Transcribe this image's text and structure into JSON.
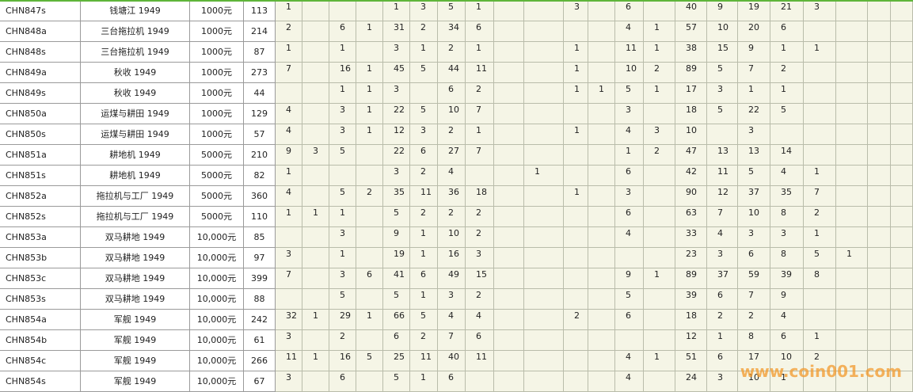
{
  "table": {
    "rows": [
      {
        "id": "CHN847s",
        "name": "钱塘江 1949",
        "denomination": "1000元",
        "total": 113,
        "cells": [
          1,
          null,
          null,
          null,
          1,
          3,
          5,
          1,
          null,
          null,
          3,
          null,
          6,
          null,
          40,
          9,
          19,
          21,
          3,
          null,
          null,
          null
        ]
      },
      {
        "id": "CHN848a",
        "name": "三台拖拉机 1949",
        "denomination": "1000元",
        "total": 214,
        "cells": [
          2,
          null,
          6,
          1,
          31,
          2,
          34,
          6,
          null,
          null,
          null,
          null,
          4,
          1,
          57,
          10,
          20,
          6,
          null,
          null,
          null,
          null
        ]
      },
      {
        "id": "CHN848s",
        "name": "三台拖拉机 1949",
        "denomination": "1000元",
        "total": 87,
        "cells": [
          1,
          null,
          1,
          null,
          3,
          1,
          2,
          1,
          null,
          null,
          1,
          null,
          11,
          1,
          38,
          15,
          9,
          1,
          1,
          null,
          null,
          null
        ]
      },
      {
        "id": "CHN849a",
        "name": "秋收 1949",
        "denomination": "1000元",
        "total": 273,
        "cells": [
          7,
          null,
          16,
          1,
          45,
          5,
          44,
          11,
          null,
          null,
          1,
          null,
          10,
          2,
          89,
          5,
          7,
          2,
          null,
          null,
          null,
          null
        ]
      },
      {
        "id": "CHN849s",
        "name": "秋收 1949",
        "denomination": "1000元",
        "total": 44,
        "cells": [
          null,
          null,
          1,
          1,
          3,
          null,
          6,
          2,
          null,
          null,
          1,
          1,
          5,
          1,
          17,
          3,
          1,
          1,
          null,
          null,
          null,
          null
        ]
      },
      {
        "id": "CHN850a",
        "name": "运煤与耕田 1949",
        "denomination": "1000元",
        "total": 129,
        "cells": [
          4,
          null,
          3,
          1,
          22,
          5,
          10,
          7,
          null,
          null,
          null,
          null,
          3,
          null,
          18,
          5,
          22,
          5,
          null,
          null,
          null,
          null
        ]
      },
      {
        "id": "CHN850s",
        "name": "运煤与耕田 1949",
        "denomination": "1000元",
        "total": 57,
        "cells": [
          4,
          null,
          3,
          1,
          12,
          3,
          2,
          1,
          null,
          null,
          1,
          null,
          4,
          3,
          10,
          null,
          3,
          null,
          null,
          null,
          null,
          null
        ]
      },
      {
        "id": "CHN851a",
        "name": "耕地机 1949",
        "denomination": "5000元",
        "total": 210,
        "cells": [
          9,
          3,
          5,
          null,
          22,
          6,
          27,
          7,
          null,
          null,
          null,
          null,
          1,
          2,
          47,
          13,
          13,
          14,
          null,
          null,
          null,
          null
        ]
      },
      {
        "id": "CHN851s",
        "name": "耕地机 1949",
        "denomination": "5000元",
        "total": 82,
        "cells": [
          1,
          null,
          null,
          null,
          3,
          2,
          4,
          null,
          null,
          1,
          null,
          null,
          6,
          null,
          42,
          11,
          5,
          4,
          1,
          null,
          null,
          null
        ]
      },
      {
        "id": "CHN852a",
        "name": "拖拉机与工厂 1949",
        "denomination": "5000元",
        "total": 360,
        "cells": [
          4,
          null,
          5,
          2,
          35,
          11,
          36,
          18,
          null,
          null,
          1,
          null,
          3,
          null,
          90,
          12,
          37,
          35,
          7,
          null,
          null,
          null
        ]
      },
      {
        "id": "CHN852s",
        "name": "拖拉机与工厂 1949",
        "denomination": "5000元",
        "total": 110,
        "cells": [
          1,
          1,
          1,
          null,
          5,
          2,
          2,
          2,
          null,
          null,
          null,
          null,
          6,
          null,
          63,
          7,
          10,
          8,
          2,
          null,
          null,
          null
        ]
      },
      {
        "id": "CHN853a",
        "name": "双马耕地 1949",
        "denomination": "10,000元",
        "total": 85,
        "cells": [
          null,
          null,
          3,
          null,
          9,
          1,
          10,
          2,
          null,
          null,
          null,
          null,
          4,
          null,
          33,
          4,
          3,
          3,
          1,
          null,
          null,
          null
        ]
      },
      {
        "id": "CHN853b",
        "name": "双马耕地 1949",
        "denomination": "10,000元",
        "total": 97,
        "cells": [
          3,
          null,
          1,
          null,
          19,
          1,
          16,
          3,
          null,
          null,
          null,
          null,
          null,
          null,
          23,
          3,
          6,
          8,
          5,
          1,
          null,
          null
        ]
      },
      {
        "id": "CHN853c",
        "name": "双马耕地 1949",
        "denomination": "10,000元",
        "total": 399,
        "cells": [
          7,
          null,
          3,
          6,
          41,
          6,
          49,
          15,
          null,
          null,
          null,
          null,
          9,
          1,
          89,
          37,
          59,
          39,
          8,
          null,
          null,
          null
        ]
      },
      {
        "id": "CHN853s",
        "name": "双马耕地 1949",
        "denomination": "10,000元",
        "total": 88,
        "cells": [
          null,
          null,
          5,
          null,
          5,
          1,
          3,
          2,
          null,
          null,
          null,
          null,
          5,
          null,
          39,
          6,
          7,
          9,
          null,
          null,
          null,
          null
        ]
      },
      {
        "id": "CHN854a",
        "name": "军舰 1949",
        "denomination": "10,000元",
        "total": 242,
        "cells": [
          32,
          1,
          29,
          1,
          66,
          5,
          4,
          4,
          null,
          null,
          2,
          null,
          6,
          null,
          18,
          2,
          2,
          4,
          null,
          null,
          null,
          null
        ]
      },
      {
        "id": "CHN854b",
        "name": "军舰 1949",
        "denomination": "10,000元",
        "total": 61,
        "cells": [
          3,
          null,
          2,
          null,
          6,
          2,
          7,
          6,
          null,
          null,
          null,
          null,
          null,
          null,
          12,
          1,
          8,
          6,
          1,
          null,
          null,
          null
        ]
      },
      {
        "id": "CHN854c",
        "name": "军舰 1949",
        "denomination": "10,000元",
        "total": 266,
        "cells": [
          11,
          1,
          16,
          5,
          25,
          11,
          40,
          11,
          null,
          null,
          null,
          null,
          4,
          1,
          51,
          6,
          17,
          10,
          2,
          null,
          null,
          null
        ]
      },
      {
        "id": "CHN854s",
        "name": "军舰 1949",
        "denomination": "10,000元",
        "total": 67,
        "cells": [
          3,
          null,
          6,
          null,
          5,
          1,
          6,
          null,
          null,
          null,
          null,
          null,
          4,
          null,
          24,
          3,
          10,
          1,
          null,
          null,
          null,
          null
        ]
      }
    ]
  },
  "watermark": "www.coin001.com"
}
